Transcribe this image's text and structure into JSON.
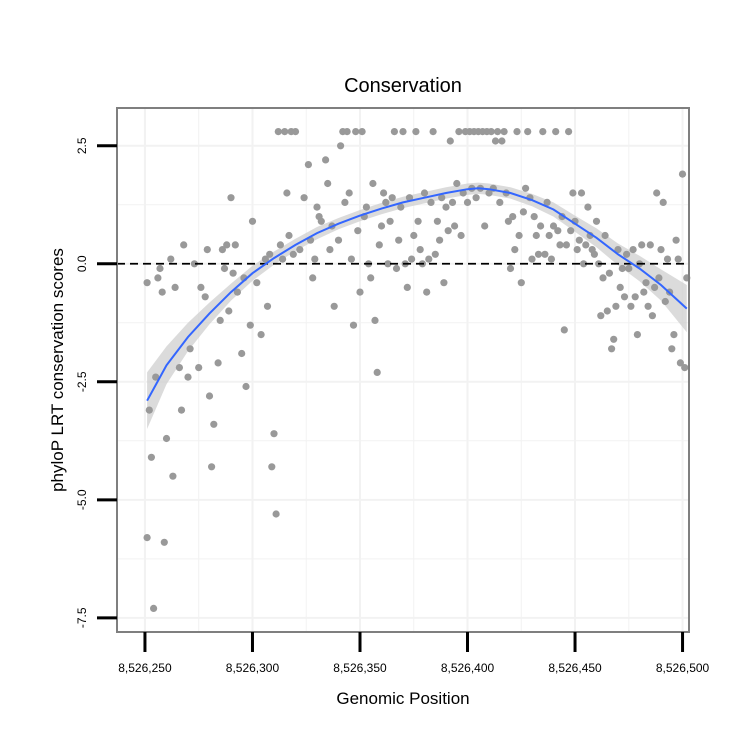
{
  "chart_data": {
    "type": "scatter",
    "title": "Conservation",
    "xlabel": "Genomic Position",
    "ylabel": "phyloP LRT conservation scores",
    "xlim": [
      8526237,
      8526503
    ],
    "ylim": [
      -7.8,
      3.3
    ],
    "x_ticks": [
      8526250,
      8526300,
      8526350,
      8526400,
      8526450,
      8526500
    ],
    "x_tick_labels": [
      "8,526,250",
      "8,526,300",
      "8,526,350",
      "8,526,400",
      "8,526,450",
      "8,526,500"
    ],
    "y_ticks": [
      -7.5,
      -5.0,
      -2.5,
      0.0,
      2.5
    ],
    "y_tick_labels": [
      "-7.5",
      "-5.0",
      "-2.5",
      "0.0",
      "2.5"
    ],
    "reference_line": {
      "y": 0,
      "style": "dashed"
    },
    "grid": true,
    "colors": {
      "points": "#999999",
      "smooth": "#3366ff",
      "band": "#cfcfcf",
      "panel_border": "#7f7f7f",
      "grid": "#f2f2f2"
    },
    "series": [
      {
        "name": "phyloP scores",
        "points": [
          [
            8526251,
            -0.4
          ],
          [
            8526251,
            -5.8
          ],
          [
            8526252,
            -3.1
          ],
          [
            8526253,
            -4.1
          ],
          [
            8526254,
            -7.3
          ],
          [
            8526255,
            -2.4
          ],
          [
            8526256,
            -0.3
          ],
          [
            8526257,
            -0.1
          ],
          [
            8526258,
            -0.6
          ],
          [
            8526259,
            -5.9
          ],
          [
            8526260,
            -3.7
          ],
          [
            8526262,
            0.1
          ],
          [
            8526263,
            -4.5
          ],
          [
            8526264,
            -0.5
          ],
          [
            8526266,
            -2.2
          ],
          [
            8526267,
            -3.1
          ],
          [
            8526268,
            0.4
          ],
          [
            8526270,
            -2.4
          ],
          [
            8526271,
            -1.8
          ],
          [
            8526273,
            0.0
          ],
          [
            8526275,
            -2.2
          ],
          [
            8526276,
            -0.5
          ],
          [
            8526278,
            -0.7
          ],
          [
            8526279,
            0.3
          ],
          [
            8526280,
            -2.8
          ],
          [
            8526281,
            -4.3
          ],
          [
            8526282,
            -3.4
          ],
          [
            8526284,
            -2.1
          ],
          [
            8526285,
            -1.2
          ],
          [
            8526286,
            0.3
          ],
          [
            8526287,
            -0.1
          ],
          [
            8526288,
            0.4
          ],
          [
            8526289,
            -1.0
          ],
          [
            8526290,
            1.4
          ],
          [
            8526291,
            -0.2
          ],
          [
            8526292,
            0.4
          ],
          [
            8526293,
            -0.6
          ],
          [
            8526295,
            -1.9
          ],
          [
            8526296,
            -0.3
          ],
          [
            8526297,
            -2.6
          ],
          [
            8526299,
            -1.3
          ],
          [
            8526300,
            0.9
          ],
          [
            8526302,
            -0.4
          ],
          [
            8526304,
            -1.5
          ],
          [
            8526306,
            0.1
          ],
          [
            8526307,
            -0.9
          ],
          [
            8526308,
            0.2
          ],
          [
            8526309,
            -4.3
          ],
          [
            8526310,
            -3.6
          ],
          [
            8526311,
            -5.3
          ],
          [
            8526312,
            2.8
          ],
          [
            8526313,
            0.4
          ],
          [
            8526314,
            0.1
          ],
          [
            8526315,
            2.8
          ],
          [
            8526316,
            1.5
          ],
          [
            8526317,
            0.6
          ],
          [
            8526318,
            2.8
          ],
          [
            8526319,
            0.2
          ],
          [
            8526320,
            2.8
          ],
          [
            8526322,
            0.3
          ],
          [
            8526324,
            1.4
          ],
          [
            8526326,
            2.1
          ],
          [
            8526327,
            0.5
          ],
          [
            8526328,
            -0.3
          ],
          [
            8526329,
            0.1
          ],
          [
            8526330,
            1.2
          ],
          [
            8526331,
            1.0
          ],
          [
            8526332,
            0.9
          ],
          [
            8526334,
            2.2
          ],
          [
            8526335,
            1.7
          ],
          [
            8526336,
            0.3
          ],
          [
            8526337,
            0.8
          ],
          [
            8526338,
            -0.9
          ],
          [
            8526340,
            0.5
          ],
          [
            8526341,
            2.5
          ],
          [
            8526342,
            2.8
          ],
          [
            8526343,
            1.3
          ],
          [
            8526344,
            2.8
          ],
          [
            8526345,
            1.5
          ],
          [
            8526346,
            0.1
          ],
          [
            8526347,
            -1.3
          ],
          [
            8526348,
            2.8
          ],
          [
            8526349,
            0.7
          ],
          [
            8526350,
            -0.6
          ],
          [
            8526351,
            2.8
          ],
          [
            8526352,
            1.0
          ],
          [
            8526353,
            1.2
          ],
          [
            8526354,
            0.0
          ],
          [
            8526355,
            -0.3
          ],
          [
            8526356,
            1.7
          ],
          [
            8526357,
            -1.2
          ],
          [
            8526358,
            -2.3
          ],
          [
            8526359,
            0.4
          ],
          [
            8526360,
            0.8
          ],
          [
            8526361,
            1.5
          ],
          [
            8526362,
            1.3
          ],
          [
            8526363,
            0.0
          ],
          [
            8526364,
            0.9
          ],
          [
            8526365,
            1.4
          ],
          [
            8526366,
            2.8
          ],
          [
            8526367,
            -0.1
          ],
          [
            8526368,
            0.5
          ],
          [
            8526369,
            1.2
          ],
          [
            8526370,
            2.8
          ],
          [
            8526371,
            0.0
          ],
          [
            8526372,
            -0.5
          ],
          [
            8526373,
            1.4
          ],
          [
            8526374,
            0.1
          ],
          [
            8526375,
            0.6
          ],
          [
            8526376,
            2.8
          ],
          [
            8526377,
            0.9
          ],
          [
            8526378,
            0.3
          ],
          [
            8526379,
            0.0
          ],
          [
            8526380,
            1.5
          ],
          [
            8526381,
            -0.6
          ],
          [
            8526382,
            0.1
          ],
          [
            8526383,
            1.3
          ],
          [
            8526384,
            2.8
          ],
          [
            8526385,
            0.2
          ],
          [
            8526386,
            0.9
          ],
          [
            8526387,
            0.5
          ],
          [
            8526388,
            1.4
          ],
          [
            8526389,
            -0.4
          ],
          [
            8526390,
            1.2
          ],
          [
            8526391,
            0.7
          ],
          [
            8526392,
            2.6
          ],
          [
            8526393,
            1.3
          ],
          [
            8526394,
            0.8
          ],
          [
            8526395,
            1.7
          ],
          [
            8526396,
            2.8
          ],
          [
            8526397,
            0.6
          ],
          [
            8526398,
            1.5
          ],
          [
            8526399,
            2.8
          ],
          [
            8526400,
            1.3
          ],
          [
            8526401,
            2.8
          ],
          [
            8526402,
            1.6
          ],
          [
            8526403,
            2.8
          ],
          [
            8526404,
            1.4
          ],
          [
            8526405,
            2.8
          ],
          [
            8526406,
            1.6
          ],
          [
            8526407,
            2.8
          ],
          [
            8526408,
            0.8
          ],
          [
            8526409,
            2.8
          ],
          [
            8526410,
            1.5
          ],
          [
            8526411,
            2.8
          ],
          [
            8526412,
            1.6
          ],
          [
            8526413,
            2.6
          ],
          [
            8526414,
            2.8
          ],
          [
            8526415,
            1.3
          ],
          [
            8526416,
            2.6
          ],
          [
            8526417,
            2.8
          ],
          [
            8526418,
            1.5
          ],
          [
            8526419,
            0.9
          ],
          [
            8526420,
            -0.1
          ],
          [
            8526421,
            1.0
          ],
          [
            8526422,
            0.3
          ],
          [
            8526423,
            2.8
          ],
          [
            8526424,
            0.6
          ],
          [
            8526425,
            -0.4
          ],
          [
            8526426,
            1.1
          ],
          [
            8526427,
            1.6
          ],
          [
            8526428,
            2.8
          ],
          [
            8526429,
            1.4
          ],
          [
            8526430,
            0.1
          ],
          [
            8526431,
            1.0
          ],
          [
            8526432,
            0.6
          ],
          [
            8526433,
            0.2
          ],
          [
            8526434,
            0.8
          ],
          [
            8526435,
            2.8
          ],
          [
            8526436,
            0.2
          ],
          [
            8526437,
            1.3
          ],
          [
            8526438,
            0.6
          ],
          [
            8526439,
            0.1
          ],
          [
            8526440,
            0.8
          ],
          [
            8526441,
            2.8
          ],
          [
            8526442,
            0.7
          ],
          [
            8526443,
            0.4
          ],
          [
            8526444,
            1.0
          ],
          [
            8526445,
            -1.4
          ],
          [
            8526446,
            0.4
          ],
          [
            8526447,
            2.8
          ],
          [
            8526448,
            0.7
          ],
          [
            8526449,
            1.5
          ],
          [
            8526450,
            0.9
          ],
          [
            8526451,
            0.3
          ],
          [
            8526452,
            0.5
          ],
          [
            8526453,
            1.5
          ],
          [
            8526454,
            0.0
          ],
          [
            8526455,
            0.4
          ],
          [
            8526456,
            1.2
          ],
          [
            8526457,
            0.6
          ],
          [
            8526458,
            0.3
          ],
          [
            8526459,
            0.2
          ],
          [
            8526460,
            0.9
          ],
          [
            8526461,
            0.0
          ],
          [
            8526462,
            -1.1
          ],
          [
            8526463,
            -0.3
          ],
          [
            8526464,
            0.6
          ],
          [
            8526465,
            -1.0
          ],
          [
            8526466,
            -0.2
          ],
          [
            8526467,
            -1.8
          ],
          [
            8526468,
            -1.6
          ],
          [
            8526469,
            -0.9
          ],
          [
            8526470,
            0.3
          ],
          [
            8526471,
            -0.5
          ],
          [
            8526472,
            -0.1
          ],
          [
            8526473,
            -0.7
          ],
          [
            8526474,
            0.2
          ],
          [
            8526475,
            -0.1
          ],
          [
            8526476,
            -0.9
          ],
          [
            8526477,
            0.3
          ],
          [
            8526478,
            -0.7
          ],
          [
            8526479,
            -1.5
          ],
          [
            8526480,
            0.0
          ],
          [
            8526481,
            0.4
          ],
          [
            8526482,
            -0.6
          ],
          [
            8526483,
            -0.4
          ],
          [
            8526484,
            -0.9
          ],
          [
            8526485,
            0.4
          ],
          [
            8526486,
            -1.1
          ],
          [
            8526487,
            -0.5
          ],
          [
            8526488,
            1.5
          ],
          [
            8526489,
            -0.3
          ],
          [
            8526490,
            0.3
          ],
          [
            8526491,
            1.3
          ],
          [
            8526492,
            -0.8
          ],
          [
            8526493,
            0.1
          ],
          [
            8526494,
            -0.6
          ],
          [
            8526495,
            -1.8
          ],
          [
            8526496,
            -1.5
          ],
          [
            8526497,
            0.5
          ],
          [
            8526498,
            0.1
          ],
          [
            8526499,
            -2.1
          ],
          [
            8526500,
            1.9
          ],
          [
            8526501,
            -2.2
          ],
          [
            8526502,
            -0.3
          ]
        ]
      },
      {
        "name": "smoothed fit",
        "type": "line",
        "x": [
          8526251,
          8526260,
          8526270,
          8526280,
          8526290,
          8526300,
          8526310,
          8526320,
          8526330,
          8526340,
          8526350,
          8526360,
          8526370,
          8526380,
          8526390,
          8526400,
          8526405,
          8526410,
          8526420,
          8526430,
          8526440,
          8526450,
          8526460,
          8526470,
          8526480,
          8526490,
          8526502
        ],
        "y": [
          -2.9,
          -2.15,
          -1.55,
          -1.05,
          -0.6,
          -0.2,
          0.12,
          0.4,
          0.65,
          0.85,
          1.02,
          1.17,
          1.3,
          1.4,
          1.5,
          1.58,
          1.6,
          1.58,
          1.5,
          1.35,
          1.15,
          0.85,
          0.55,
          0.2,
          -0.1,
          -0.45,
          -0.95
        ],
        "band_lower": [
          -3.5,
          -2.55,
          -1.85,
          -1.28,
          -0.78,
          -0.36,
          -0.02,
          0.27,
          0.52,
          0.73,
          0.9,
          1.05,
          1.18,
          1.28,
          1.38,
          1.46,
          1.48,
          1.46,
          1.38,
          1.22,
          1.0,
          0.68,
          0.35,
          -0.03,
          -0.37,
          -0.78,
          -1.45
        ],
        "band_upper": [
          -2.3,
          -1.75,
          -1.25,
          -0.82,
          -0.42,
          -0.04,
          0.26,
          0.53,
          0.78,
          0.97,
          1.14,
          1.29,
          1.42,
          1.52,
          1.62,
          1.7,
          1.72,
          1.7,
          1.62,
          1.48,
          1.3,
          1.02,
          0.75,
          0.43,
          0.17,
          -0.12,
          -0.45
        ]
      }
    ]
  }
}
